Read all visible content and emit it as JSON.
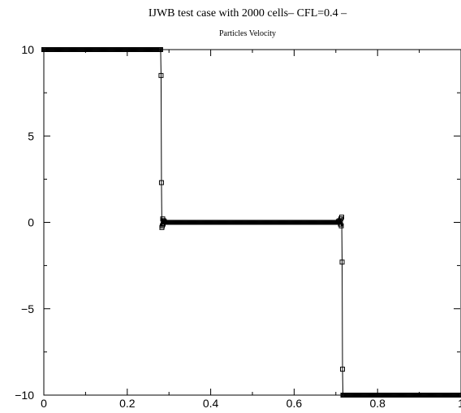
{
  "chart_data": {
    "type": "line",
    "title": "IJWB test case with 2000 cells– CFL=0.4 –",
    "subtitle": "Particles Velocity",
    "xlabel": "",
    "ylabel": "",
    "xlim": [
      0,
      1
    ],
    "ylim": [
      -10,
      10
    ],
    "x_ticks": [
      0,
      0.2,
      0.4,
      0.6,
      0.8,
      1
    ],
    "x_tick_labels": [
      "0",
      "0.2",
      "0.4",
      "0.6",
      "0.8",
      "1"
    ],
    "y_ticks": [
      10,
      5,
      0,
      -5,
      -10
    ],
    "y_tick_labels": [
      "10",
      "5",
      "0",
      "−5",
      "−10"
    ],
    "grid": false,
    "line_color": "#000000",
    "marker": "open-square",
    "series": [
      {
        "name": "",
        "x": [
          0,
          0.1,
          0.2,
          0.28,
          0.281,
          0.282,
          0.283,
          0.284,
          0.285,
          0.286,
          0.287,
          0.289,
          0.292,
          0.3,
          0.35,
          0.4,
          0.45,
          0.5,
          0.55,
          0.6,
          0.65,
          0.7,
          0.706,
          0.709,
          0.711,
          0.712,
          0.713,
          0.714,
          0.715,
          0.716,
          0.717,
          0.718,
          0.719,
          0.72,
          0.8,
          0.9,
          1.0
        ],
        "y": [
          10,
          10,
          10,
          10,
          8.5,
          2.3,
          -0.3,
          -0.2,
          0.2,
          -0.1,
          0.1,
          0.05,
          0,
          0,
          0,
          0,
          0,
          0,
          0,
          0,
          0,
          0,
          0.05,
          0.1,
          -0.1,
          0.2,
          -0.2,
          0.3,
          -2.3,
          -8.5,
          -10,
          -10,
          -10,
          -10,
          -10,
          -10,
          -10
        ]
      }
    ]
  }
}
